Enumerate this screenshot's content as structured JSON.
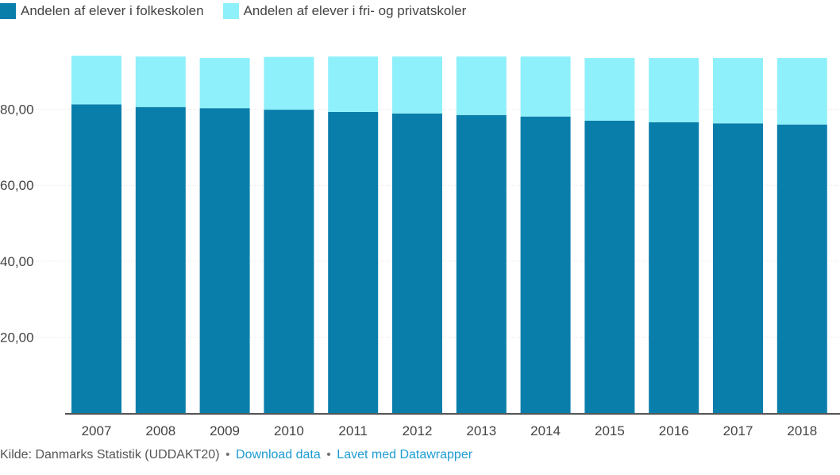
{
  "chart_data": {
    "type": "bar",
    "stacked": true,
    "categories": [
      "2007",
      "2008",
      "2009",
      "2010",
      "2011",
      "2012",
      "2013",
      "2014",
      "2015",
      "2016",
      "2017",
      "2018"
    ],
    "series": [
      {
        "name": "Andelen af elever i folkeskolen",
        "color": "#0a7eab",
        "values": [
          81.3,
          80.6,
          80.3,
          79.9,
          79.3,
          78.9,
          78.5,
          78.1,
          77.0,
          76.6,
          76.3,
          76.0
        ]
      },
      {
        "name": "Andelen af elever i fri- og privatskoler",
        "color": "#8ef0fa",
        "values": [
          12.8,
          13.3,
          13.2,
          13.9,
          14.6,
          15.0,
          15.4,
          15.8,
          16.5,
          16.9,
          17.2,
          17.5
        ]
      }
    ],
    "yticks": [
      "20,00",
      "40,00",
      "60,00",
      "80,00"
    ],
    "ylim": [
      0,
      100
    ],
    "grid": true,
    "legend_position": "top-left"
  },
  "footer": {
    "source": "Kilde: Danmarks Statistik (UDDAKT20)",
    "separator": "•",
    "download": "Download data",
    "made_with": "Lavet med Datawrapper"
  }
}
